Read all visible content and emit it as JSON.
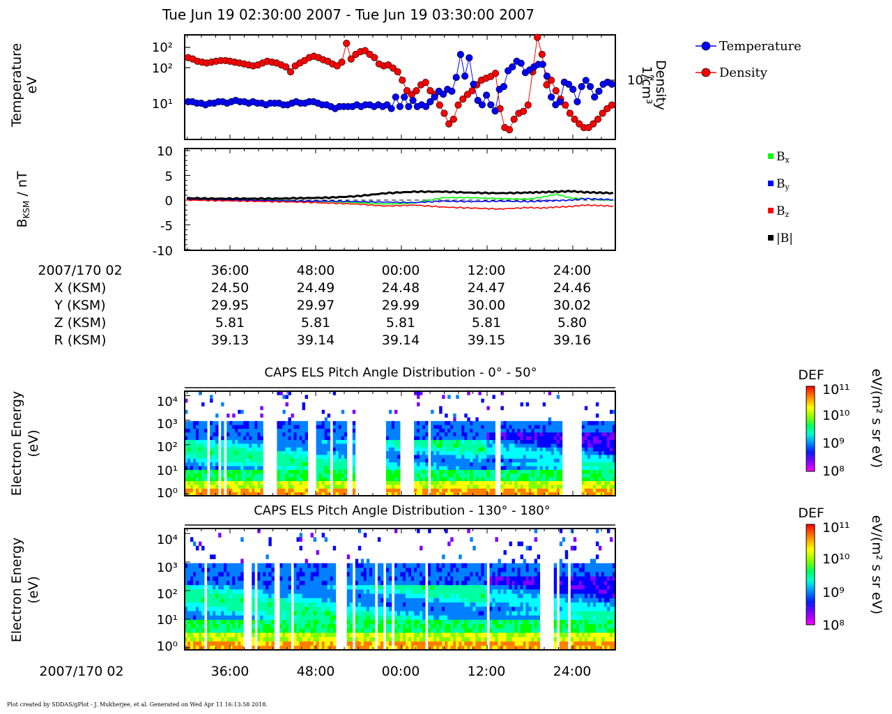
{
  "title": "Tue Jun 19 02:30:00 2007 - Tue Jun 19 03:30:00 2007",
  "footer": "Plot created by SDDAS/gPlot - J. Mukherjee, et al.  Generated on Wed Apr 11 16:13:58 2018.",
  "panel1": {
    "ylabel_left": [
      "Temperature",
      "eV"
    ],
    "ylabel_right": [
      "Density",
      "1/cm³"
    ],
    "left_ticks": [
      "10²",
      "10²",
      "10¹"
    ],
    "right_tick": "10⁻²",
    "legend": [
      {
        "label": "Temperature",
        "color": "#0000ff"
      },
      {
        "label": "Density",
        "color": "#ff0000"
      }
    ]
  },
  "panel2": {
    "ylabel": "B",
    "ylabel_sub": "KSM",
    "ylabel_unit": " / nT",
    "yticks": [
      "10",
      "5",
      "0",
      "-5",
      "-10"
    ],
    "ylim": [
      -10,
      10
    ],
    "legend": [
      {
        "label": "B",
        "sub": "x",
        "color": "#00ff00"
      },
      {
        "label": "B",
        "sub": "y",
        "color": "#0000ff"
      },
      {
        "label": "B",
        "sub": "z",
        "color": "#ff0000"
      },
      {
        "label": "|B|",
        "sub": "",
        "color": "#000000"
      }
    ]
  },
  "ephemeris": {
    "row_labels": [
      "2007/170 02",
      "X (KSM)",
      "Y (KSM)",
      "Z (KSM)",
      "R (KSM)"
    ],
    "columns": [
      {
        "time": "36:00",
        "X": "24.50",
        "Y": "29.95",
        "Z": "5.81",
        "R": "39.13"
      },
      {
        "time": "48:00",
        "X": "24.49",
        "Y": "29.97",
        "Z": "5.81",
        "R": "39.14"
      },
      {
        "time": "00:00",
        "X": "24.48",
        "Y": "29.99",
        "Z": "5.81",
        "R": "39.14"
      },
      {
        "time": "12:00",
        "X": "24.47",
        "Y": "30.00",
        "Z": "5.81",
        "R": "39.15"
      },
      {
        "time": "24:00",
        "X": "24.46",
        "Y": "30.02",
        "Z": "5.80",
        "R": "39.16"
      }
    ]
  },
  "spectrogram_panels": [
    {
      "title": "CAPS ELS Pitch Angle Distribution - 0° - 50°",
      "ylabel": [
        "Electron Energy",
        "(eV)"
      ]
    },
    {
      "title": "CAPS ELS Pitch Angle Distribution - 130° - 180°",
      "ylabel": [
        "Electron Energy",
        "(eV)"
      ]
    }
  ],
  "energy_ticks": [
    "10⁴",
    "10³",
    "10²",
    "10¹",
    "10⁰"
  ],
  "colorbar": {
    "title": "DEF",
    "unit": "eV/(m² s sr eV)",
    "ticks": [
      "10¹¹",
      "10¹⁰",
      "10⁹",
      "10⁸"
    ],
    "colors": [
      "#ff0000",
      "#ff8000",
      "#ffff00",
      "#80ff00",
      "#00ff00",
      "#00ffa0",
      "#00ffff",
      "#0080ff",
      "#0000ff",
      "#8000ff",
      "#ff00ff"
    ]
  },
  "bottom_axis": {
    "label": "2007/170 02",
    "ticks": [
      "36:00",
      "48:00",
      "00:00",
      "12:00",
      "24:00"
    ]
  },
  "chart_data": [
    {
      "type": "scatter",
      "name": "Temperature / Density",
      "x_range": [
        "02:30",
        "03:30"
      ],
      "series": [
        {
          "name": "Temperature",
          "color": "#0000ff",
          "values": [
            11,
            11,
            10,
            10,
            9,
            10,
            10,
            11,
            11,
            10,
            11,
            12,
            11,
            11,
            10,
            11,
            10,
            10,
            9,
            10,
            10,
            10,
            9,
            9,
            10,
            11,
            10,
            10,
            11,
            11,
            10,
            9,
            9,
            8,
            7,
            8,
            8,
            8,
            8,
            9,
            8,
            9,
            9,
            8,
            9,
            8,
            9,
            7,
            15,
            8,
            15,
            8,
            12,
            8,
            9,
            8,
            11,
            15,
            22,
            18,
            25,
            22,
            55,
            250,
            60,
            200,
            35,
            12,
            9,
            17,
            9,
            6,
            25,
            30,
            85,
            110,
            160,
            140,
            75,
            90,
            110,
            130,
            130,
            60,
            15,
            9,
            11,
            40,
            35,
            25,
            11,
            30,
            45,
            30,
            15,
            22,
            35,
            40,
            35
          ]
        },
        {
          "name": "Density",
          "color": "#ff0000",
          "values": [
            0.03,
            0.028,
            0.025,
            0.024,
            0.023,
            0.024,
            0.025,
            0.026,
            0.026,
            0.025,
            0.024,
            0.023,
            0.022,
            0.021,
            0.02,
            0.021,
            0.023,
            0.025,
            0.024,
            0.023,
            0.021,
            0.019,
            0.015,
            0.02,
            0.023,
            0.026,
            0.03,
            0.032,
            0.03,
            0.027,
            0.025,
            0.022,
            0.02,
            0.024,
            0.06,
            0.028,
            0.035,
            0.04,
            0.042,
            0.035,
            0.03,
            0.022,
            0.02,
            0.021,
            0.018,
            0.015,
            0.01,
            0.006,
            0.005,
            0.006,
            0.008,
            0.009,
            0.006,
            0.005,
            0.003,
            0.002,
            0.0012,
            0.0015,
            0.003,
            0.004,
            0.005,
            0.006,
            0.008,
            0.01,
            0.011,
            0.012,
            0.014,
            0.0025,
            0.001,
            0.0009,
            0.0015,
            0.002,
            0.0022,
            0.003,
            0.015,
            0.08,
            0.035,
            0.008,
            0.01,
            0.006,
            0.004,
            0.003,
            0.002,
            0.0015,
            0.0012,
            0.001,
            0.001,
            0.0012,
            0.0015,
            0.002,
            0.0025,
            0.003
          ]
        }
      ]
    },
    {
      "type": "line",
      "name": "B_KSM / nT",
      "ylim": [
        -10,
        10
      ],
      "x": [
        0,
        4,
        8,
        12,
        16,
        20,
        24,
        28,
        32,
        36,
        40,
        44,
        48,
        50,
        52,
        54,
        56,
        58,
        60
      ],
      "series": [
        {
          "name": "Bx",
          "color": "#00ff00",
          "values": [
            0.1,
            0.1,
            0.1,
            0.0,
            -0.2,
            -0.3,
            -0.5,
            -0.8,
            -0.6,
            0.5,
            0.5,
            0.3,
            0.2,
            0.6,
            1.2,
            0.4,
            0.3,
            0.1,
            0.0
          ]
        },
        {
          "name": "By",
          "color": "#0000ff",
          "values": [
            0.2,
            0.1,
            0.0,
            -0.1,
            -0.2,
            -0.2,
            -0.3,
            -0.4,
            -0.5,
            -0.2,
            -0.3,
            -0.2,
            -0.3,
            -0.2,
            -0.1,
            0.0,
            0.3,
            0.2,
            0.1
          ]
        },
        {
          "name": "Bz",
          "color": "#ff0000",
          "values": [
            0.0,
            -0.1,
            -0.2,
            -0.3,
            -0.4,
            -0.6,
            -0.8,
            -1.2,
            -1.0,
            -1.4,
            -1.6,
            -1.8,
            -1.5,
            -1.6,
            -1.4,
            -1.3,
            -1.0,
            -1.1,
            -1.2
          ]
        },
        {
          "name": "|B|",
          "color": "#000000",
          "values": [
            0.4,
            0.3,
            0.3,
            0.3,
            0.4,
            0.5,
            0.8,
            1.4,
            1.7,
            1.7,
            1.5,
            1.4,
            1.5,
            1.6,
            1.7,
            1.8,
            1.6,
            1.5,
            1.4
          ]
        }
      ]
    },
    {
      "type": "heatmap",
      "name": "CAPS ELS Pitch Angle Distribution - 0° - 50°",
      "ylim": [
        "10⁰",
        "10⁴"
      ],
      "colorbar_range": [
        "10⁸",
        "10¹¹"
      ]
    },
    {
      "type": "heatmap",
      "name": "CAPS ELS Pitch Angle Distribution - 130° - 180°",
      "ylim": [
        "10⁰",
        "10⁴"
      ],
      "colorbar_range": [
        "10⁸",
        "10¹¹"
      ]
    }
  ]
}
